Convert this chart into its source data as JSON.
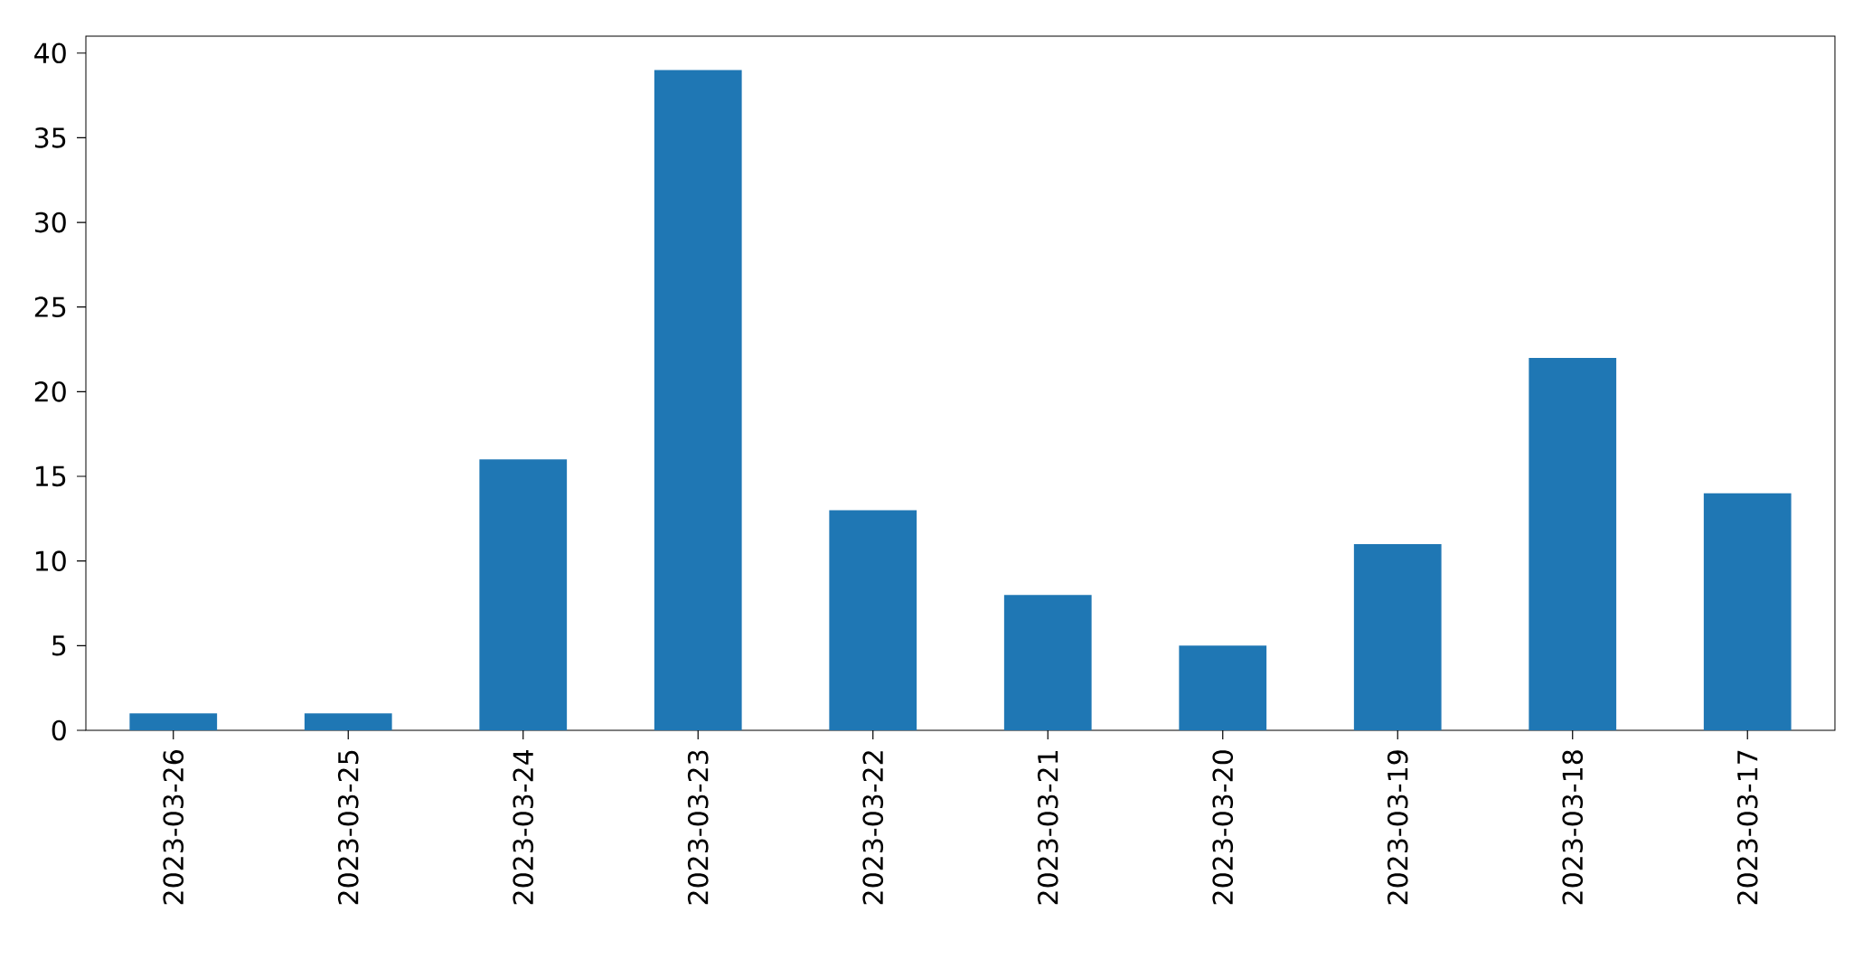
{
  "chart_data": {
    "type": "bar",
    "categories": [
      "2023-03-26",
      "2023-03-25",
      "2023-03-24",
      "2023-03-23",
      "2023-03-22",
      "2023-03-21",
      "2023-03-20",
      "2023-03-19",
      "2023-03-18",
      "2023-03-17"
    ],
    "values": [
      1,
      1,
      16,
      39,
      13,
      8,
      5,
      11,
      22,
      14
    ],
    "color": "#1f77b4",
    "ylim": [
      0,
      41
    ],
    "yticks": [
      0,
      5,
      10,
      15,
      20,
      25,
      30,
      35,
      40
    ]
  }
}
